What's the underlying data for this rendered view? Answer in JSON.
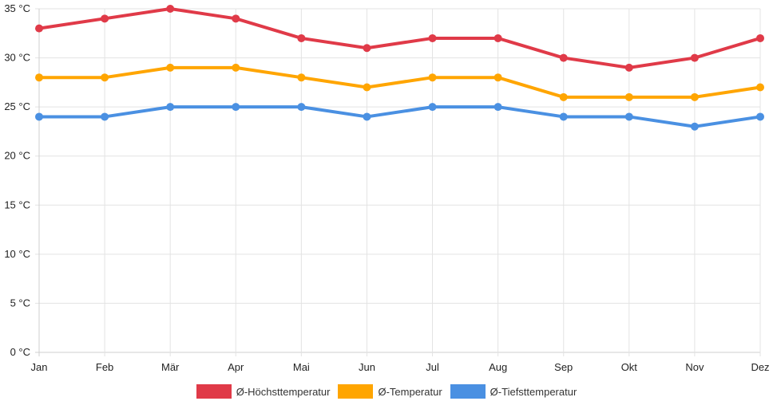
{
  "chart_data": {
    "type": "line",
    "title": "",
    "xlabel": "",
    "ylabel": "",
    "categories": [
      "Jan",
      "Feb",
      "Mär",
      "Apr",
      "Mai",
      "Jun",
      "Jul",
      "Aug",
      "Sep",
      "Okt",
      "Nov",
      "Dez"
    ],
    "ylim": [
      0,
      35
    ],
    "yticks": [
      0,
      5,
      10,
      15,
      20,
      25,
      30,
      35
    ],
    "ytick_labels": [
      "0 °C",
      "5 °C",
      "10 °C",
      "15 °C",
      "20 °C",
      "25 °C",
      "30 °C",
      "35 °C"
    ],
    "grid": true,
    "legend_position": "bottom",
    "series": [
      {
        "name": "Ø-Höchsttemperatur",
        "color": "#e03a48",
        "values": [
          33,
          34,
          35,
          34,
          32,
          31,
          32,
          32,
          30,
          29,
          30,
          32
        ]
      },
      {
        "name": "Ø-Temperatur",
        "color": "#ffa500",
        "values": [
          28,
          28,
          29,
          29,
          28,
          27,
          28,
          28,
          26,
          26,
          26,
          27
        ]
      },
      {
        "name": "Ø-Tiefsttemperatur",
        "color": "#4a90e2",
        "values": [
          24,
          24,
          25,
          25,
          25,
          24,
          25,
          25,
          24,
          24,
          23,
          24
        ]
      }
    ]
  }
}
